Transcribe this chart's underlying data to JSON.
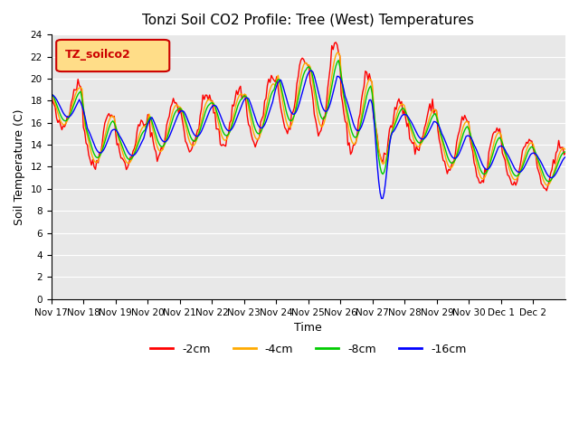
{
  "title": "Tonzi Soil CO2 Profile: Tree (West) Temperatures",
  "xlabel": "Time",
  "ylabel": "Soil Temperature (C)",
  "ylim": [
    0,
    24
  ],
  "yticks": [
    0,
    2,
    4,
    6,
    8,
    10,
    12,
    14,
    16,
    18,
    20,
    22,
    24
  ],
  "legend_label": "TZ_soilco2",
  "legend_box_color": "#FFDD88",
  "legend_box_edge": "#CC0000",
  "series_labels": [
    "-2cm",
    "-4cm",
    "-8cm",
    "-16cm"
  ],
  "series_colors": [
    "#FF0000",
    "#FFAA00",
    "#00CC00",
    "#0000FF"
  ],
  "xtick_labels": [
    "Nov 17",
    "Nov 18",
    "Nov 19",
    "Nov 20",
    "Nov 21",
    "Nov 22",
    "Nov 23",
    "Nov 24",
    "Nov 25",
    "Nov 26",
    "Nov 27",
    "Nov 28",
    "Nov 29",
    "Nov 30",
    "Dec 1",
    "Dec 2"
  ],
  "background_color": "#FFFFFF",
  "axes_facecolor": "#E8E8E8"
}
